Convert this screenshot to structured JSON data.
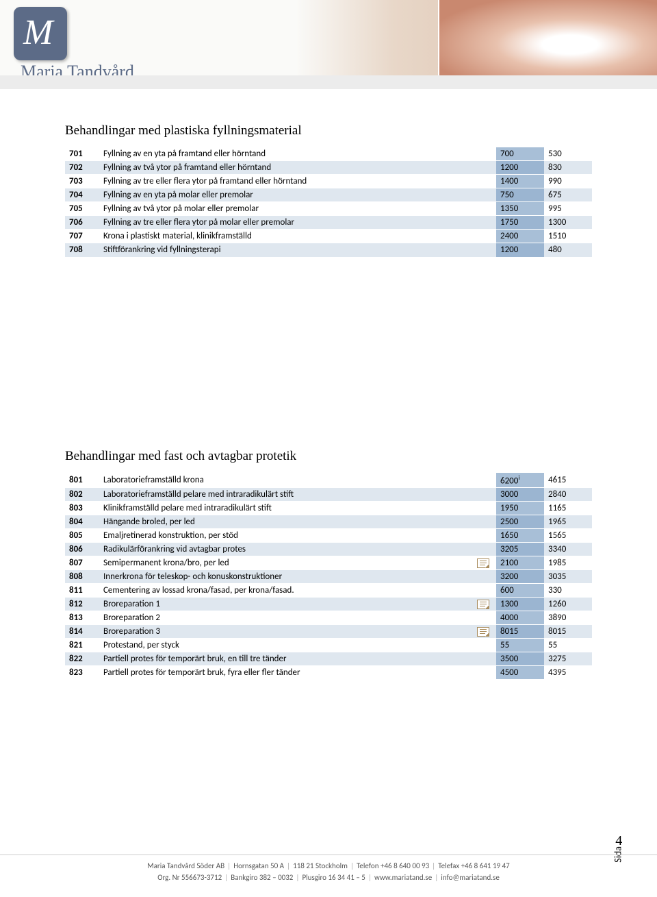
{
  "header": {
    "logo_letter": "M",
    "logo_text": "Maria Tandvård"
  },
  "section1": {
    "title": "Behandlingar med plastiska fyllningsmaterial",
    "rows": [
      {
        "code": "701",
        "desc": "Fyllning av en yta på framtand eller hörntand",
        "p1": "700",
        "p2": "530",
        "alt": false,
        "mark": false
      },
      {
        "code": "702",
        "desc": "Fyllning av två ytor på framtand eller hörntand",
        "p1": "1200",
        "p2": "830",
        "alt": true,
        "mark": false
      },
      {
        "code": "703",
        "desc": "Fyllning av tre eller flera ytor på framtand eller hörntand",
        "p1": "1400",
        "p2": "990",
        "alt": false,
        "mark": false
      },
      {
        "code": "704",
        "desc": "Fyllning av en yta på molar eller premolar",
        "p1": "750",
        "p2": "675",
        "alt": true,
        "mark": false
      },
      {
        "code": "705",
        "desc": "Fyllning av två ytor på molar eller premolar",
        "p1": "1350",
        "p2": "995",
        "alt": false,
        "mark": false
      },
      {
        "code": "706",
        "desc": "Fyllning av tre eller flera ytor på molar eller premolar",
        "p1": "1750",
        "p2": "1300",
        "alt": true,
        "mark": false
      },
      {
        "code": "707",
        "desc": "Krona i plastiskt material, klinikframställd",
        "p1": "2400",
        "p2": "1510",
        "alt": false,
        "mark": false
      },
      {
        "code": "708",
        "desc": "Stiftförankring vid fyllningsterapi",
        "p1": "1200",
        "p2": "480",
        "alt": true,
        "mark": false
      }
    ]
  },
  "section2": {
    "title": "Behandlingar med fast och avtagbar protetik",
    "rows": [
      {
        "code": "801",
        "desc": "Laboratorieframställd krona",
        "p1": "6200",
        "p2": "4615",
        "alt": false,
        "mark": false,
        "sup": "i"
      },
      {
        "code": "802",
        "desc": "Laboratorieframställd pelare med intraradikulärt stift",
        "p1": "3000",
        "p2": "2840",
        "alt": true,
        "mark": false
      },
      {
        "code": "803",
        "desc": "Klinikframställd pelare med intraradikulärt stift",
        "p1": "1950",
        "p2": "1165",
        "alt": false,
        "mark": false
      },
      {
        "code": "804",
        "desc": "Hängande broled, per led",
        "p1": "2500",
        "p2": "1965",
        "alt": true,
        "mark": false
      },
      {
        "code": "805",
        "desc": "Emaljretinerad konstruktion, per stöd",
        "p1": "1650",
        "p2": "1565",
        "alt": false,
        "mark": false
      },
      {
        "code": "806",
        "desc": "Radikulärförankring vid avtagbar protes",
        "p1": "3205",
        "p2": "3340",
        "alt": true,
        "mark": false
      },
      {
        "code": "807",
        "desc": "Semipermanent krona/bro, per led",
        "p1": "2100",
        "p2": "1985",
        "alt": false,
        "mark": true
      },
      {
        "code": "808",
        "desc": "Innerkrona för teleskop- och konuskonstruktioner",
        "p1": "3200",
        "p2": "3035",
        "alt": true,
        "mark": false
      },
      {
        "code": "811",
        "desc": "Cementering av lossad krona/fasad, per krona/fasad.",
        "p1": "600",
        "p2": "330",
        "alt": false,
        "mark": false
      },
      {
        "code": "812",
        "desc": "Broreparation 1",
        "p1": "1300",
        "p2": "1260",
        "alt": true,
        "mark": true
      },
      {
        "code": "813",
        "desc": "Broreparation 2",
        "p1": "4000",
        "p2": "3890",
        "alt": false,
        "mark": false
      },
      {
        "code": "814",
        "desc": "Broreparation 3",
        "p1": "8015",
        "p2": "8015",
        "alt": true,
        "mark": true
      },
      {
        "code": "821",
        "desc": "Protestand, per styck",
        "p1": "55",
        "p2": "55",
        "alt": false,
        "mark": false
      },
      {
        "code": "822",
        "desc": "Partiell protes för temporärt bruk, en till tre tänder",
        "p1": "3500",
        "p2": "3275",
        "alt": true,
        "mark": false
      },
      {
        "code": "823",
        "desc": "Partiell protes för temporärt bruk, fyra eller fler tänder",
        "p1": "4500",
        "p2": "4395",
        "alt": false,
        "mark": false
      }
    ]
  },
  "page_label": "Sida",
  "page_number": "4",
  "footer": {
    "line1_parts": [
      "Maria Tandvård Söder AB",
      "Hornsgatan 50 A",
      "118 21 Stockholm",
      "Telefon +46  8 640 00 93",
      "Telefax +46 8 641 19 47"
    ],
    "line2_parts": [
      "Org. Nr 556673-3712",
      "Bankgiro 382 – 0032",
      "Plusgiro 16 34 41 – 5",
      "www.mariatand.se",
      "info@mariatand.se"
    ]
  },
  "colors": {
    "row_odd_bg": "#dfe7ef",
    "price_col_bg": "#9bb5d1",
    "header_strip": "#ececec"
  }
}
